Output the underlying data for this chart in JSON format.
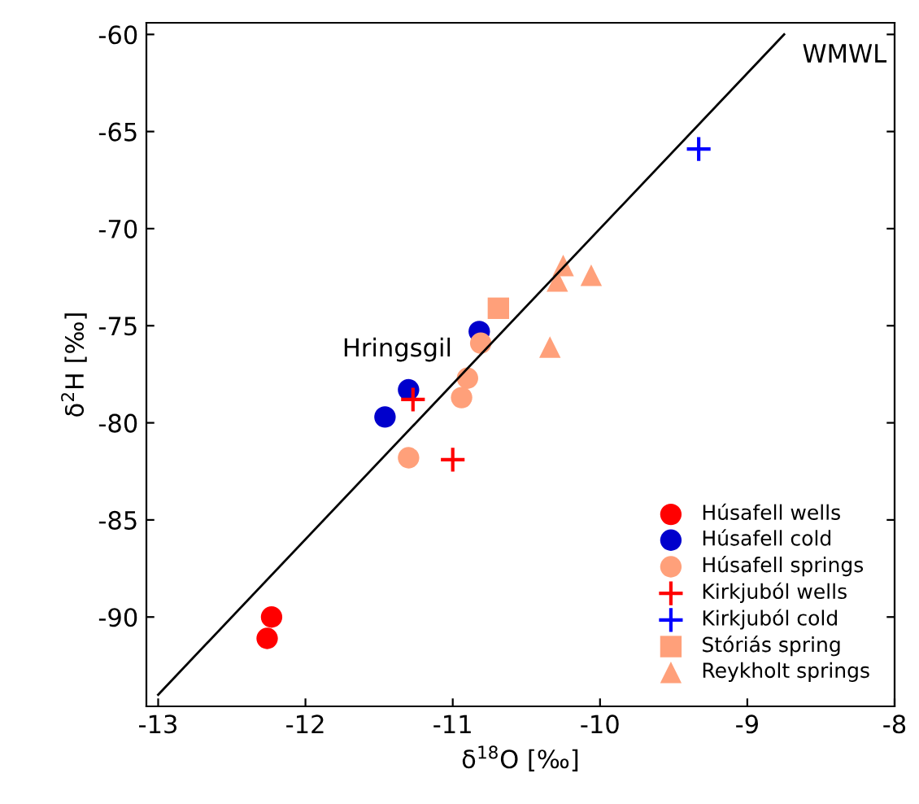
{
  "chart_data": {
    "type": "scatter",
    "xlabel": "δ$^{18}$O [‰]",
    "ylabel": "δ$^{2}$H [‰]",
    "xlim": [
      -13.08,
      -8
    ],
    "ylim": [
      -94.6,
      -59.4
    ],
    "xticks": [
      -13,
      -12,
      -11,
      -10,
      -9,
      -8
    ],
    "yticks": [
      -90,
      -85,
      -80,
      -75,
      -70,
      -65,
      -60
    ],
    "grid": false,
    "legend": "bottom right",
    "annotations": [
      {
        "text": "Hringsgil",
        "x": -10.82,
        "y": -75.3
      },
      {
        "text": "WMWL",
        "x": -8.75,
        "y": -60
      }
    ],
    "series": [
      {
        "name": "Húsafell wells",
        "color": "#ff0000",
        "marker": "circle",
        "x": [
          -12.23,
          -12.26
        ],
        "values": [
          -90.0,
          -91.1
        ]
      },
      {
        "name": "Húsafell cold",
        "color": "#0000cc",
        "marker": "circle",
        "x": [
          -10.82,
          -11.3,
          -11.46
        ],
        "values": [
          -75.3,
          -78.3,
          -79.7
        ]
      },
      {
        "name": "Húsafell springs",
        "color": "#ffa07a",
        "marker": "circle",
        "x": [
          -10.81,
          -10.9,
          -10.94,
          -11.3
        ],
        "values": [
          -75.9,
          -77.7,
          -78.7,
          -81.8
        ]
      },
      {
        "name": "Kirkjuból wells",
        "color": "#ff0000",
        "marker": "cross",
        "x": [
          -11.27,
          -11.0
        ],
        "values": [
          -78.8,
          -81.9
        ]
      },
      {
        "name": "Kirkjuból cold",
        "color": "#0000ff",
        "marker": "cross",
        "x": [
          -9.33
        ],
        "values": [
          -65.9
        ]
      },
      {
        "name": "Stóriás spring",
        "color": "#ffa07a",
        "marker": "square",
        "x": [
          -10.69
        ],
        "values": [
          -74.1
        ]
      },
      {
        "name": "Reykholt springs",
        "color": "#ffa07a",
        "marker": "triangle",
        "x": [
          -10.34,
          -10.25,
          -10.29,
          -10.06
        ],
        "values": [
          -76.1,
          -71.9,
          -72.7,
          -72.4
        ]
      },
      {
        "type": "line",
        "color": "#000000",
        "marker": "none",
        "line_style": "solid",
        "x": [
          -13,
          -8.75
        ],
        "values": [
          -94,
          -60
        ]
      }
    ]
  }
}
